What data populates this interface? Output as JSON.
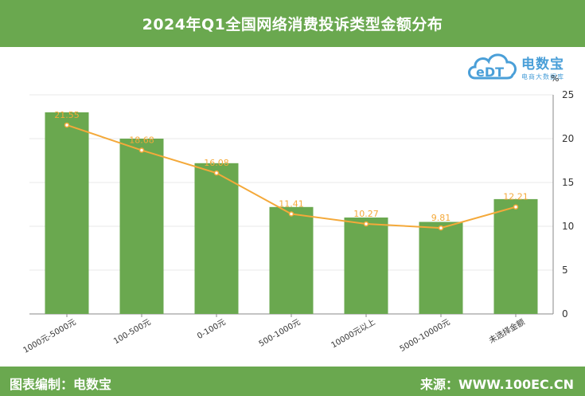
{
  "header": {
    "title": "2024年Q1全国网络消费投诉类型金额分布"
  },
  "logo": {
    "name": "电数宝",
    "sub": "电商大数据库",
    "mark": "eDT"
  },
  "footer": {
    "left": "图表编制：电数宝",
    "right": "来源：WWW.100EC.CN"
  },
  "colors": {
    "bar": "#6aa84f",
    "line": "#f4a93a",
    "header_bg": "#6aa84f",
    "logo": "#4a9fd8"
  },
  "chart_data": {
    "type": "bar",
    "unit": "%",
    "categories": [
      "1000元-5000元",
      "100-500元",
      "0-100元",
      "500-1000元",
      "10000元以上",
      "5000-10000元",
      "未选择金额"
    ],
    "values": [
      21.55,
      18.68,
      16.08,
      11.41,
      10.27,
      9.81,
      12.21
    ],
    "bar_values": [
      23.0,
      20.0,
      17.2,
      12.2,
      11.0,
      10.5,
      13.1
    ],
    "line_values": [
      21.55,
      18.68,
      16.08,
      11.41,
      10.27,
      9.81,
      12.21
    ],
    "data_labels": [
      "21.55",
      "18.68",
      "16.08",
      "11.41",
      "10.27",
      "9.81",
      "12.21"
    ],
    "ylim": [
      0,
      25
    ],
    "yticks": [
      "0",
      "5",
      "10",
      "15",
      "20",
      "25"
    ],
    "y_axis_position": "right",
    "grid": true
  }
}
